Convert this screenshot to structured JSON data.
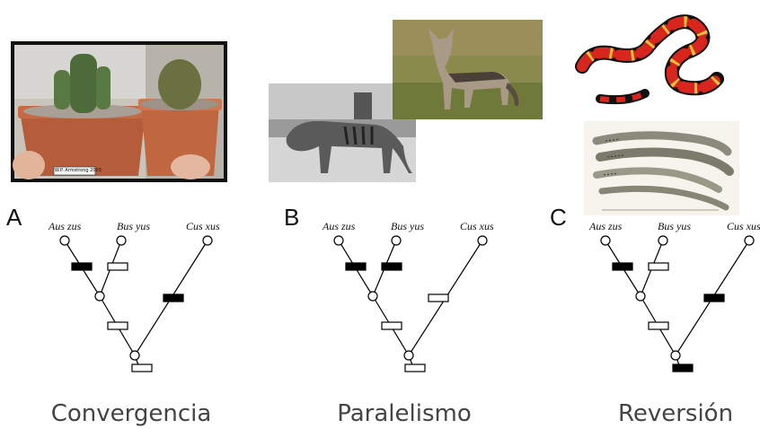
{
  "panels": [
    {
      "letter": "A",
      "caption": "Convergencia",
      "species": [
        "Aus zus",
        "Bus yus",
        "Cus xus"
      ],
      "photo_credit": "W.P. Armstrong 2003"
    },
    {
      "letter": "B",
      "caption": "Paralelismo",
      "species": [
        "Aus zus",
        "Bus yus",
        "Cus xus"
      ]
    },
    {
      "letter": "C",
      "caption": "Reversión",
      "species": [
        "Aus zus",
        "Bus yus",
        "Cus xus"
      ]
    }
  ],
  "colors": {
    "derived_state": "#000000",
    "ancestral_state": "#ffffff",
    "caption_text": "#444444"
  },
  "photos": [
    "cactus-pots-photo",
    "thylacine-photo",
    "jackal-photo",
    "coral-snake-illustration",
    "lamprey-illustration"
  ]
}
